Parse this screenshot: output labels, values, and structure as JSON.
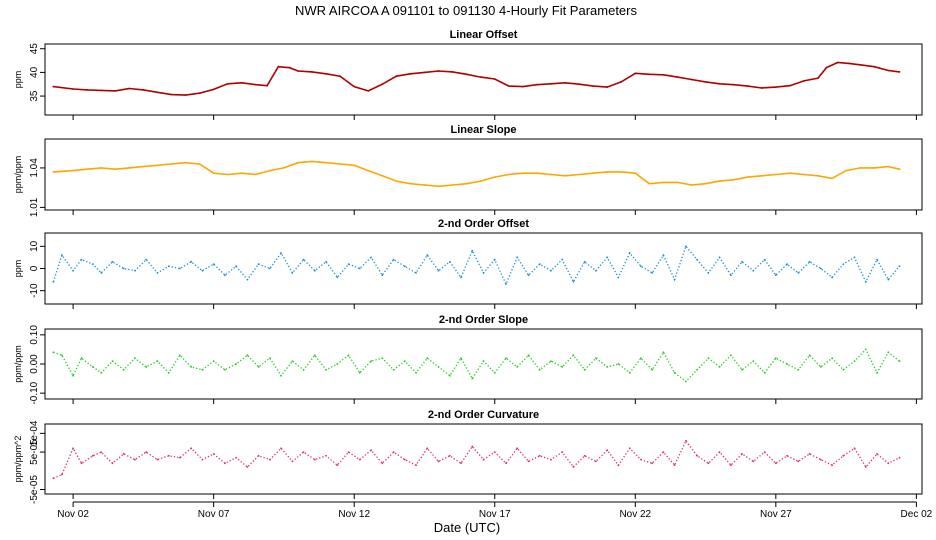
{
  "chart_data": {
    "type": "line",
    "title": "NWR   AIRCOA A   091101 to 091130   4-Hourly Fit Parameters",
    "xlabel": "Date (UTC)",
    "x_axis": {
      "range_days": [
        0,
        31.2
      ],
      "ticks": [
        {
          "day": 1.0,
          "label": "Nov 02"
        },
        {
          "day": 6.0,
          "label": "Nov 07"
        },
        {
          "day": 11.0,
          "label": "Nov 12"
        },
        {
          "day": 16.0,
          "label": "Nov 17"
        },
        {
          "day": 21.0,
          "label": "Nov 22"
        },
        {
          "day": 26.0,
          "label": "Nov 27"
        },
        {
          "day": 31.0,
          "label": "Dec 02"
        }
      ]
    },
    "panels": [
      {
        "title": "Linear Offset",
        "ylabel": "ppm",
        "color": "#b00000",
        "style": "solid",
        "ylim": [
          31,
          46
        ],
        "yticks": [
          {
            "v": 35,
            "label": "35"
          },
          {
            "v": 40,
            "label": "40"
          },
          {
            "v": 45,
            "label": "45"
          }
        ],
        "x": [
          0.3,
          1.0,
          1.5,
          2.0,
          2.5,
          3.0,
          3.5,
          4.0,
          4.5,
          5.0,
          5.5,
          6.0,
          6.5,
          7.0,
          7.5,
          7.9,
          8.3,
          8.7,
          9.0,
          9.5,
          10.0,
          10.5,
          11.0,
          11.5,
          12.0,
          12.5,
          13.0,
          13.5,
          14.0,
          14.5,
          15.0,
          15.5,
          16.0,
          16.5,
          17.0,
          17.5,
          18.0,
          18.5,
          19.0,
          19.5,
          20.0,
          20.5,
          21.0,
          21.5,
          22.0,
          22.5,
          23.0,
          23.5,
          24.0,
          24.5,
          25.0,
          25.5,
          26.0,
          26.5,
          27.0,
          27.5,
          27.8,
          28.2,
          28.6,
          29.0,
          29.5,
          30.0,
          30.4
        ],
        "values": [
          37.0,
          36.5,
          36.3,
          36.2,
          36.1,
          36.6,
          36.3,
          35.8,
          35.3,
          35.2,
          35.6,
          36.4,
          37.6,
          37.8,
          37.4,
          37.2,
          41.2,
          41.0,
          40.3,
          40.1,
          39.7,
          39.2,
          37.0,
          36.1,
          37.5,
          39.2,
          39.7,
          40.0,
          40.3,
          40.1,
          39.6,
          39.0,
          38.6,
          37.1,
          37.0,
          37.4,
          37.6,
          37.8,
          37.5,
          37.1,
          36.9,
          38.0,
          39.8,
          39.6,
          39.5,
          39.0,
          38.5,
          38.0,
          37.6,
          37.4,
          37.1,
          36.7,
          36.9,
          37.2,
          38.2,
          38.8,
          41.0,
          42.1,
          41.9,
          41.6,
          41.2,
          40.4,
          40.1
        ]
      },
      {
        "title": "Linear Slope",
        "ylabel": "ppm/ppm",
        "color": "#ffa500",
        "style": "solid",
        "ylim": [
          1.008,
          1.062
        ],
        "yticks": [
          {
            "v": 1.01,
            "label": "1.01"
          },
          {
            "v": 1.04,
            "label": "1.04"
          }
        ],
        "x": [
          0.3,
          1.0,
          1.5,
          2.0,
          2.5,
          3.0,
          3.5,
          4.0,
          4.5,
          5.0,
          5.5,
          6.0,
          6.5,
          7.0,
          7.5,
          8.0,
          8.5,
          9.0,
          9.5,
          10.0,
          10.5,
          11.0,
          11.5,
          12.0,
          12.5,
          13.0,
          13.5,
          14.0,
          14.5,
          15.0,
          15.5,
          16.0,
          16.5,
          17.0,
          17.5,
          18.0,
          18.5,
          19.0,
          19.5,
          20.0,
          20.5,
          21.0,
          21.5,
          22.0,
          22.5,
          23.0,
          23.5,
          24.0,
          24.5,
          25.0,
          25.5,
          26.0,
          26.5,
          27.0,
          27.5,
          28.0,
          28.5,
          29.0,
          29.5,
          30.0,
          30.4
        ],
        "values": [
          1.037,
          1.038,
          1.039,
          1.04,
          1.039,
          1.04,
          1.041,
          1.042,
          1.043,
          1.044,
          1.043,
          1.036,
          1.035,
          1.036,
          1.035,
          1.038,
          1.04,
          1.044,
          1.045,
          1.044,
          1.043,
          1.042,
          1.038,
          1.034,
          1.03,
          1.028,
          1.027,
          1.026,
          1.027,
          1.028,
          1.03,
          1.033,
          1.035,
          1.036,
          1.036,
          1.035,
          1.034,
          1.035,
          1.036,
          1.037,
          1.037,
          1.036,
          1.028,
          1.029,
          1.029,
          1.027,
          1.028,
          1.03,
          1.031,
          1.033,
          1.034,
          1.035,
          1.036,
          1.035,
          1.034,
          1.032,
          1.038,
          1.04,
          1.04,
          1.041,
          1.039
        ]
      },
      {
        "title": "2-nd Order Offset",
        "ylabel": "ppm",
        "color": "#1a8fd0",
        "style": "dotted",
        "ylim": [
          -16,
          16
        ],
        "yticks": [
          {
            "v": -10,
            "label": "-10"
          },
          {
            "v": 0,
            "label": "0"
          },
          {
            "v": 10,
            "label": "10"
          }
        ],
        "x": [
          0.3,
          0.6,
          1.0,
          1.3,
          1.7,
          2.0,
          2.4,
          2.8,
          3.2,
          3.6,
          4.0,
          4.4,
          4.8,
          5.2,
          5.6,
          6.0,
          6.4,
          6.8,
          7.2,
          7.6,
          8.0,
          8.4,
          8.8,
          9.2,
          9.6,
          10.0,
          10.4,
          10.8,
          11.2,
          11.6,
          12.0,
          12.4,
          12.8,
          13.2,
          13.6,
          14.0,
          14.4,
          14.8,
          15.2,
          15.6,
          16.0,
          16.4,
          16.8,
          17.2,
          17.6,
          18.0,
          18.4,
          18.8,
          19.2,
          19.6,
          20.0,
          20.4,
          20.8,
          21.2,
          21.6,
          22.0,
          22.4,
          22.8,
          23.2,
          23.6,
          24.0,
          24.4,
          24.8,
          25.2,
          25.6,
          26.0,
          26.4,
          26.8,
          27.2,
          27.6,
          28.0,
          28.4,
          28.8,
          29.2,
          29.6,
          30.0,
          30.4
        ],
        "values": [
          -6,
          6,
          -1,
          4,
          2,
          -2,
          3,
          0,
          -1,
          4,
          -2,
          1,
          0,
          3,
          -1,
          2,
          -3,
          1,
          -5,
          2,
          0,
          7,
          -2,
          4,
          -1,
          3,
          -4,
          2,
          0,
          5,
          -3,
          4,
          1,
          -2,
          6,
          -1,
          3,
          -4,
          8,
          -2,
          4,
          -7,
          5,
          -3,
          2,
          -1,
          4,
          -6,
          3,
          -1,
          5,
          -4,
          7,
          1,
          -2,
          6,
          -5,
          10,
          4,
          -2,
          5,
          -3,
          3,
          -1,
          4,
          -3,
          2,
          -2,
          3,
          0,
          -4,
          2,
          5,
          -6,
          4,
          -5,
          1
        ]
      },
      {
        "title": "2-nd Order Slope",
        "ylabel": "ppm/ppm",
        "color": "#22cc22",
        "style": "dotted",
        "ylim": [
          -0.12,
          0.12
        ],
        "yticks": [
          {
            "v": -0.1,
            "label": "-0.10"
          },
          {
            "v": 0,
            "label": "0.00"
          },
          {
            "v": 0.1,
            "label": "0.10"
          }
        ],
        "x": [
          0.3,
          0.6,
          1.0,
          1.3,
          1.7,
          2.0,
          2.4,
          2.8,
          3.2,
          3.6,
          4.0,
          4.4,
          4.8,
          5.2,
          5.6,
          6.0,
          6.4,
          6.8,
          7.2,
          7.6,
          8.0,
          8.4,
          8.8,
          9.2,
          9.6,
          10.0,
          10.4,
          10.8,
          11.2,
          11.6,
          12.0,
          12.4,
          12.8,
          13.2,
          13.6,
          14.0,
          14.4,
          14.8,
          15.2,
          15.6,
          16.0,
          16.4,
          16.8,
          17.2,
          17.6,
          18.0,
          18.4,
          18.8,
          19.2,
          19.6,
          20.0,
          20.4,
          20.8,
          21.2,
          21.6,
          22.0,
          22.4,
          22.8,
          23.2,
          23.6,
          24.0,
          24.4,
          24.8,
          25.2,
          25.6,
          26.0,
          26.4,
          26.8,
          27.2,
          27.6,
          28.0,
          28.4,
          28.8,
          29.2,
          29.6,
          30.0,
          30.4
        ],
        "values": [
          0.04,
          0.03,
          -0.04,
          0.02,
          -0.01,
          -0.03,
          0.01,
          -0.02,
          0.02,
          -0.01,
          0.01,
          -0.03,
          0.03,
          -0.01,
          -0.02,
          0.01,
          -0.02,
          0.0,
          0.03,
          -0.01,
          0.02,
          -0.04,
          0.01,
          -0.02,
          0.03,
          -0.02,
          0.0,
          0.03,
          -0.03,
          0.01,
          0.02,
          -0.02,
          0.01,
          -0.03,
          0.02,
          -0.01,
          -0.04,
          0.02,
          -0.05,
          0.01,
          -0.03,
          0.02,
          -0.01,
          0.03,
          -0.02,
          0.01,
          -0.01,
          0.03,
          -0.02,
          0.02,
          -0.01,
          0.0,
          -0.03,
          0.02,
          -0.02,
          0.04,
          -0.03,
          -0.06,
          -0.02,
          0.02,
          -0.01,
          0.03,
          -0.02,
          0.01,
          -0.03,
          0.02,
          0.0,
          -0.02,
          0.03,
          -0.01,
          0.02,
          -0.02,
          0.01,
          0.05,
          -0.03,
          0.04,
          0.01
        ]
      },
      {
        "title": "2-nd Order Curvature",
        "ylabel": "ppm/ppm^2",
        "color": "#e0305a",
        "style": "dotted",
        "ylim": [
          -6.2e-05,
          0.000125
        ],
        "yticks": [
          {
            "v": -5e-05,
            "label": "-5e-05"
          },
          {
            "v": 5e-05,
            "label": "5e-05"
          },
          {
            "v": 0.0001,
            "label": "1e-04"
          }
        ],
        "x": [
          0.3,
          0.6,
          1.0,
          1.3,
          1.7,
          2.0,
          2.4,
          2.8,
          3.2,
          3.6,
          4.0,
          4.4,
          4.8,
          5.2,
          5.6,
          6.0,
          6.4,
          6.8,
          7.2,
          7.6,
          8.0,
          8.4,
          8.8,
          9.2,
          9.6,
          10.0,
          10.4,
          10.8,
          11.2,
          11.6,
          12.0,
          12.4,
          12.8,
          13.2,
          13.6,
          14.0,
          14.4,
          14.8,
          15.2,
          15.6,
          16.0,
          16.4,
          16.8,
          17.2,
          17.6,
          18.0,
          18.4,
          18.8,
          19.2,
          19.6,
          20.0,
          20.4,
          20.8,
          21.2,
          21.6,
          22.0,
          22.4,
          22.8,
          23.2,
          23.6,
          24.0,
          24.4,
          24.8,
          25.2,
          25.6,
          26.0,
          26.4,
          26.8,
          27.2,
          27.6,
          28.0,
          28.4,
          28.8,
          29.2,
          29.6,
          30.0,
          30.4
        ],
        "values": [
          -2e-05,
          -1e-05,
          6e-05,
          2e-05,
          4e-05,
          5e-05,
          2e-05,
          4.5e-05,
          3e-05,
          5e-05,
          3e-05,
          4e-05,
          3.5e-05,
          6e-05,
          3e-05,
          4.5e-05,
          2e-05,
          3.5e-05,
          1e-05,
          4e-05,
          3e-05,
          6e-05,
          2.5e-05,
          5e-05,
          3e-05,
          4e-05,
          1.5e-05,
          5e-05,
          3e-05,
          5.5e-05,
          2e-05,
          5e-05,
          3e-05,
          1.5e-05,
          6e-05,
          2.5e-05,
          4e-05,
          2e-05,
          6.5e-05,
          3e-05,
          5e-05,
          2e-05,
          6e-05,
          2.5e-05,
          4e-05,
          3e-05,
          5e-05,
          1e-05,
          4e-05,
          2.5e-05,
          5.5e-05,
          1.5e-05,
          6e-05,
          3e-05,
          2e-05,
          5e-05,
          1.5e-05,
          8e-05,
          4e-05,
          2e-05,
          5e-05,
          1.5e-05,
          4.5e-05,
          2.5e-05,
          5e-05,
          2e-05,
          4e-05,
          2.5e-05,
          4.5e-05,
          3e-05,
          1.5e-05,
          4e-05,
          6e-05,
          1e-05,
          4.5e-05,
          2e-05,
          3.5e-05
        ]
      }
    ]
  }
}
